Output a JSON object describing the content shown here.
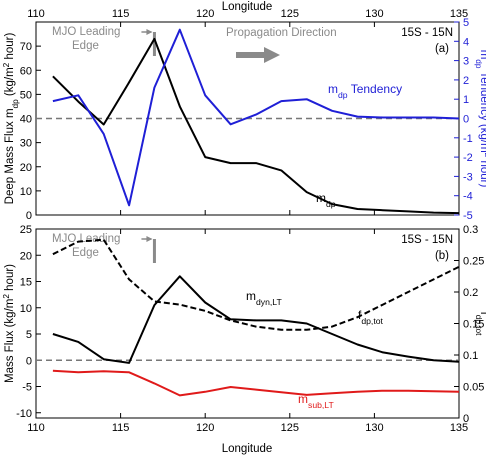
{
  "figure": {
    "top_axis_label": "Longitude",
    "bottom_axis_label": "Longitude",
    "x_ticks": [
      110,
      115,
      120,
      125,
      130,
      135
    ]
  },
  "colors": {
    "black": "#000000",
    "blue": "#1f1fd6",
    "red": "#e01a1a",
    "gray": "#8a8a8a",
    "zero_line": "#777777"
  },
  "chart_data": [
    {
      "panel": "a",
      "type": "line",
      "region_label": "15S - 15N",
      "panel_label": "(a)",
      "annotation_edge": [
        "MJO Leading",
        "Edge"
      ],
      "annotation_propagation": "Propagation Direction",
      "ylabel_left": [
        "Deep Mass Flux m",
        "dp",
        " (kg/m",
        "2",
        " hour)"
      ],
      "ylabel_right": [
        "m",
        "dp",
        " Tendency (kg/m",
        "2",
        " hour)"
      ],
      "xlim": [
        110,
        135
      ],
      "ylim_left": [
        0,
        80
      ],
      "ylim_right": [
        -5,
        5
      ],
      "yticks_left": [
        0,
        10,
        20,
        30,
        40,
        50,
        60,
        70
      ],
      "yticks_right": [
        -5,
        -4,
        -3,
        -2,
        -1,
        0,
        1,
        2,
        3,
        4,
        5
      ],
      "zero_line_right": 0,
      "edge_marker_x": 117,
      "series": [
        {
          "name": "m_dp",
          "label_main": "m",
          "label_sub": "dp",
          "axis": "left",
          "color": "black",
          "dash": "solid",
          "x": [
            111,
            112.5,
            114,
            115.5,
            117,
            118.5,
            120,
            121.5,
            123,
            124.5,
            126,
            127.5,
            129,
            130.5,
            132,
            133.5,
            135
          ],
          "y": [
            57.5,
            47,
            37.5,
            55,
            73,
            45,
            24,
            21.5,
            21.5,
            18.5,
            9.5,
            4.5,
            2.5,
            2,
            1.5,
            1,
            0.8
          ]
        },
        {
          "name": "m_dp Tendency",
          "label_main": "m",
          "label_sub": "dp",
          "label_suffix": " Tendency",
          "axis": "right",
          "color": "blue",
          "dash": "solid",
          "x": [
            111,
            112.5,
            114,
            115.5,
            117,
            118.5,
            120,
            121.5,
            123,
            124.5,
            126,
            127.5,
            129,
            130.5,
            132,
            133.5,
            135
          ],
          "y": [
            0.9,
            1.2,
            -0.8,
            -4.5,
            1.6,
            4.6,
            1.2,
            -0.3,
            0.2,
            0.9,
            1.0,
            0.4,
            0.1,
            0.05,
            0.05,
            0.05,
            0.0
          ]
        }
      ]
    },
    {
      "panel": "b",
      "type": "line",
      "region_label": "15S - 15N",
      "panel_label": "(b)",
      "annotation_edge": [
        "MJO Leading",
        "Edge"
      ],
      "ylabel_left": [
        "Mass Flux (kg/m",
        "2",
        " hour)"
      ],
      "ylabel_right": [
        "f",
        "dp,tot"
      ],
      "xlim": [
        110,
        135
      ],
      "ylim_left": [
        -11,
        25
      ],
      "ylim_right": [
        0,
        0.3
      ],
      "yticks_left": [
        -10,
        -5,
        0,
        5,
        10,
        15,
        20,
        25
      ],
      "yticks_right": [
        0,
        0.05,
        0.1,
        0.15,
        0.2,
        0.25,
        0.3
      ],
      "zero_line_left": 0,
      "edge_marker_x": 117,
      "series": [
        {
          "name": "m_dyn,LT",
          "label_main": "m",
          "label_sub": "dyn,LT",
          "axis": "left",
          "color": "black",
          "dash": "solid",
          "x": [
            111,
            112.5,
            114,
            115.5,
            117,
            118.5,
            120,
            121.5,
            123,
            124.5,
            126,
            127.5,
            129,
            130.5,
            132,
            133.5,
            135
          ],
          "y": [
            5,
            3.5,
            0.2,
            -0.5,
            10.5,
            16,
            11,
            7.8,
            7.6,
            7.6,
            7,
            5,
            3,
            1.5,
            0.7,
            0,
            -0.3
          ]
        },
        {
          "name": "f_dp,tot",
          "label_main": "f",
          "label_sub": "dp,tot",
          "axis": "right",
          "color": "black",
          "dash": "dashed",
          "x": [
            111,
            112.5,
            114,
            115.5,
            117,
            118.5,
            120,
            121.5,
            123,
            124.5,
            126,
            127.5,
            129,
            130.5,
            132,
            133.5,
            135
          ],
          "y": [
            0.26,
            0.28,
            0.283,
            0.22,
            0.185,
            0.18,
            0.17,
            0.155,
            0.145,
            0.14,
            0.14,
            0.145,
            0.16,
            0.18,
            0.2,
            0.22,
            0.24
          ]
        },
        {
          "name": "m_sub,LT",
          "label_main": "m",
          "label_sub": "sub,LT",
          "axis": "left",
          "color": "red",
          "dash": "solid",
          "x": [
            111,
            112.5,
            114,
            115.5,
            117,
            118.5,
            120,
            121.5,
            123,
            124.5,
            126,
            127.5,
            129,
            130.5,
            132,
            133.5,
            135
          ],
          "y": [
            -2,
            -2.3,
            -2.1,
            -2.3,
            -4.4,
            -6.7,
            -6.0,
            -5.1,
            -5.6,
            -6.1,
            -6.6,
            -6.3,
            -6.0,
            -5.8,
            -5.8,
            -5.9,
            -6.0
          ]
        }
      ]
    }
  ]
}
